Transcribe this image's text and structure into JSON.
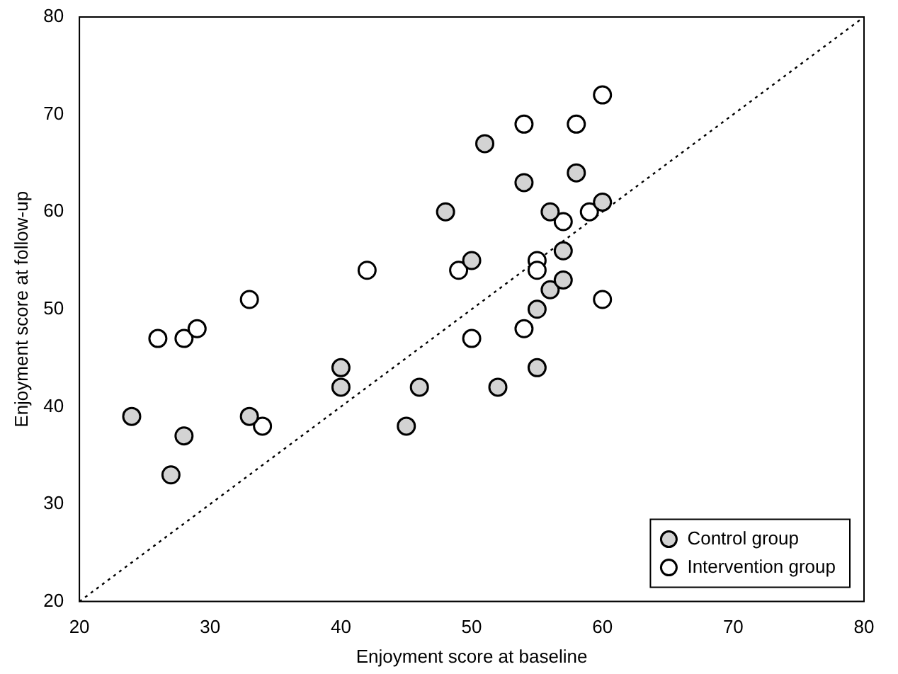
{
  "chart_data": {
    "type": "scatter",
    "xlabel": "Enjoyment score at baseline",
    "ylabel": "Enjoyment score at follow-up",
    "xlim": [
      20,
      80
    ],
    "ylim": [
      20,
      80
    ],
    "xticks": [
      20,
      30,
      40,
      50,
      60,
      70,
      80
    ],
    "yticks": [
      20,
      30,
      40,
      50,
      60,
      70,
      80
    ],
    "grid": false,
    "legend": "bottom right",
    "marker": "circle",
    "series": [
      {
        "name": "Control group",
        "color": "#d3d3d3",
        "x": [
          24,
          27,
          28,
          33,
          40,
          40,
          45,
          46,
          48,
          50,
          51,
          52,
          54,
          55,
          55,
          56,
          56,
          57,
          57,
          58,
          60
        ],
        "values": [
          39,
          33,
          37,
          39,
          44,
          42,
          38,
          42,
          60,
          55,
          67,
          42,
          63,
          44,
          50,
          52,
          60,
          56,
          53,
          64,
          61
        ]
      },
      {
        "name": "Intervention group",
        "color": "#ffffff",
        "x": [
          26,
          28,
          29,
          33,
          34,
          42,
          49,
          50,
          51,
          54,
          54,
          55,
          55,
          57,
          58,
          59,
          60,
          60
        ],
        "values": [
          47,
          47,
          48,
          51,
          38,
          54,
          54,
          47,
          null,
          69,
          48,
          55,
          54,
          59,
          69,
          60,
          72,
          51
        ]
      },
      {
        "type": "line",
        "color": "#000000",
        "line_style": "dotted",
        "marker": "none",
        "x": [
          20,
          80
        ],
        "values": [
          20,
          80
        ]
      }
    ]
  }
}
